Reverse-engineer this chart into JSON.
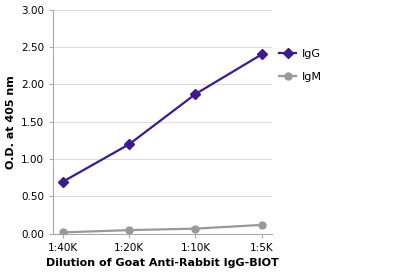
{
  "x_labels": [
    "1:40K",
    "1:20K",
    "1:10K",
    "1:5K"
  ],
  "IgG_values": [
    0.7,
    1.2,
    1.87,
    2.4
  ],
  "IgM_values": [
    0.02,
    0.05,
    0.07,
    0.12
  ],
  "IgG_color": "#3d1a8e",
  "IgM_color": "#999999",
  "IgG_label": "IgG",
  "IgM_label": "IgM",
  "xlabel": "Dilution of Goat Anti-Rabbit IgG-BIOT",
  "ylabel": "O.D. at 405 nm",
  "ylim": [
    0.0,
    3.0
  ],
  "yticks": [
    0.0,
    0.5,
    1.0,
    1.5,
    2.0,
    2.5,
    3.0
  ],
  "axis_label_fontsize": 8,
  "tick_fontsize": 7.5,
  "legend_fontsize": 8,
  "line_width": 1.6,
  "IgG_marker_size": 5,
  "IgM_marker_size": 5,
  "background_color": "#ffffff",
  "plot_bg_color": "#ffffff",
  "grid_color": "#dddddd",
  "spine_color": "#aaaaaa",
  "xlabel_fontweight": "bold",
  "ylabel_fontweight": "bold"
}
